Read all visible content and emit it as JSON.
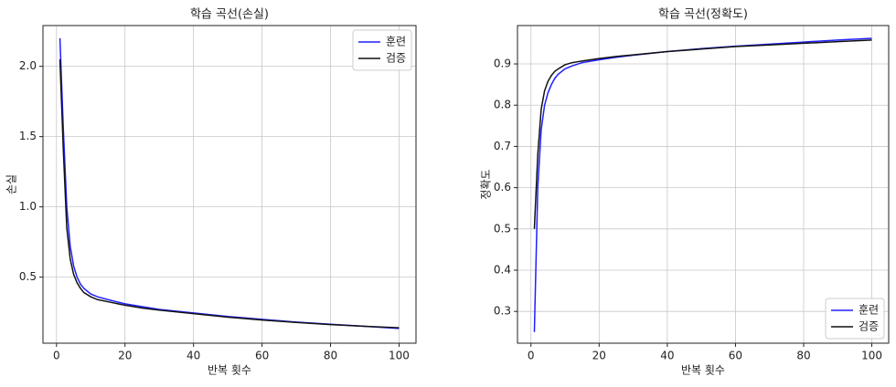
{
  "chart_data": [
    {
      "type": "line",
      "title": "학습 곡선(손실)",
      "xlabel": "반복 횟수",
      "ylabel": "손실",
      "x": [
        1,
        2,
        3,
        4,
        5,
        6,
        7,
        8,
        10,
        12,
        15,
        20,
        25,
        30,
        40,
        50,
        60,
        70,
        80,
        90,
        100
      ],
      "series": [
        {
          "name": "훈련",
          "color": "#1f1fff",
          "values": [
            2.2,
            1.55,
            1.0,
            0.72,
            0.58,
            0.5,
            0.45,
            0.42,
            0.38,
            0.36,
            0.34,
            0.31,
            0.29,
            0.27,
            0.245,
            0.22,
            0.2,
            0.18,
            0.165,
            0.15,
            0.135
          ]
        },
        {
          "name": "검증",
          "color": "#111111",
          "values": [
            2.05,
            1.4,
            0.85,
            0.63,
            0.52,
            0.46,
            0.42,
            0.39,
            0.36,
            0.34,
            0.325,
            0.3,
            0.28,
            0.265,
            0.24,
            0.215,
            0.195,
            0.178,
            0.162,
            0.15,
            0.14
          ]
        }
      ],
      "xlim": [
        -3.95,
        104.95
      ],
      "xticks": [
        0,
        20,
        40,
        60,
        80,
        100
      ],
      "ylim": [
        0.03,
        2.29
      ],
      "yticks": [
        0.5,
        {
          "value": 1,
          "label": "1.0"
        },
        1.5,
        {
          "value": 2,
          "label": "2.0"
        }
      ],
      "grid": true,
      "legend": "upper right"
    },
    {
      "type": "line",
      "title": "학습 곡선(정확도)",
      "xlabel": "반복 횟수",
      "ylabel": "정확도",
      "x": [
        1,
        2,
        3,
        4,
        5,
        6,
        7,
        8,
        10,
        12,
        15,
        20,
        25,
        30,
        40,
        50,
        60,
        70,
        80,
        90,
        100
      ],
      "series": [
        {
          "name": "훈련",
          "color": "#1f1fff",
          "values": [
            0.25,
            0.6,
            0.74,
            0.8,
            0.83,
            0.85,
            0.865,
            0.875,
            0.888,
            0.895,
            0.903,
            0.91,
            0.916,
            0.921,
            0.93,
            0.937,
            0.943,
            0.948,
            0.953,
            0.958,
            0.962
          ]
        },
        {
          "name": "검증",
          "color": "#111111",
          "values": [
            0.5,
            0.68,
            0.79,
            0.835,
            0.858,
            0.872,
            0.882,
            0.888,
            0.898,
            0.903,
            0.907,
            0.913,
            0.918,
            0.922,
            0.93,
            0.936,
            0.942,
            0.946,
            0.95,
            0.954,
            0.958
          ]
        }
      ],
      "xlim": [
        -3.95,
        104.95
      ],
      "xticks": [
        0,
        20,
        40,
        60,
        80,
        100
      ],
      "ylim": [
        0.223,
        0.993
      ],
      "yticks": [
        0.3,
        0.4,
        0.5,
        0.6,
        0.7,
        0.8,
        0.9
      ],
      "grid": true,
      "legend": "lower right"
    }
  ]
}
